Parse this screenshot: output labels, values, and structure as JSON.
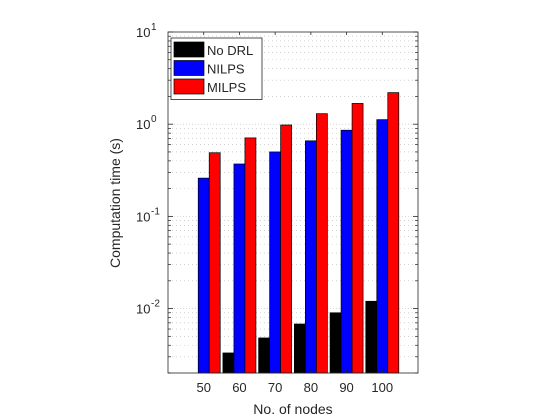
{
  "chart_data": {
    "type": "bar",
    "xlabel": "No. of nodes",
    "ylabel": "Computation time (s)",
    "categories": [
      "50",
      "60",
      "70",
      "80",
      "90",
      "100"
    ],
    "yscale": "log",
    "ylim": [
      0.002,
      10
    ],
    "yticks": [
      {
        "value": 0.01,
        "base": "10",
        "exp": "-2"
      },
      {
        "value": 0.1,
        "base": "10",
        "exp": "-1"
      },
      {
        "value": 1,
        "base": "10",
        "exp": "0"
      },
      {
        "value": 10,
        "base": "10",
        "exp": "1"
      }
    ],
    "grid": true,
    "legend_position": "top-left",
    "series": [
      {
        "name": "No DRL",
        "color": "#000000",
        "values": [
          null,
          0.0033,
          0.0048,
          0.0068,
          0.009,
          0.012
        ]
      },
      {
        "name": "NILPS",
        "color": "#0000ff",
        "values": [
          0.26,
          0.37,
          0.5,
          0.66,
          0.86,
          1.12
        ]
      },
      {
        "name": "MILPS",
        "color": "#ff0000",
        "values": [
          0.49,
          0.71,
          0.98,
          1.3,
          1.68,
          2.2
        ]
      }
    ]
  }
}
